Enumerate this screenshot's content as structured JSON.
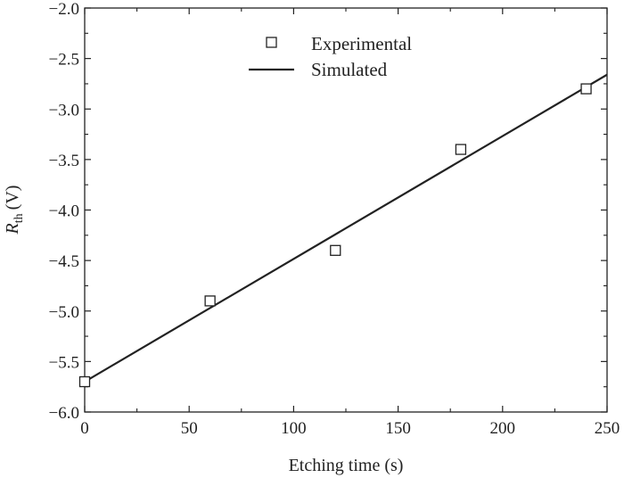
{
  "chart_data": {
    "type": "scatter",
    "title": "",
    "xlabel": "Etching time (s)",
    "ylabel": {
      "symbol": "R",
      "subscript": "th",
      "unit": "(V)"
    },
    "xlim": [
      0,
      250
    ],
    "ylim": [
      -6.0,
      -2.0
    ],
    "x_ticks": [
      0,
      50,
      100,
      150,
      200,
      250
    ],
    "y_ticks": [
      -6.0,
      -5.5,
      -5.0,
      -4.5,
      -4.0,
      -3.5,
      -3.0,
      -2.5,
      -2.0
    ],
    "x_tick_labels": [
      "0",
      "50",
      "100",
      "150",
      "200",
      "250"
    ],
    "y_tick_labels": [
      "−6.0",
      "−5.5",
      "−5.0",
      "−4.5",
      "−4.0",
      "−3.5",
      "−3.0",
      "−2.5",
      "−2.0"
    ],
    "grid": false,
    "legend_position": "top-center",
    "series": [
      {
        "name": "Experimental",
        "kind": "markers",
        "marker": "open-square",
        "points": [
          {
            "x": 0,
            "y": -5.7
          },
          {
            "x": 60,
            "y": -4.9
          },
          {
            "x": 120,
            "y": -4.4
          },
          {
            "x": 180,
            "y": -3.4
          },
          {
            "x": 240,
            "y": -2.8
          }
        ]
      },
      {
        "name": "Simulated",
        "kind": "line",
        "points": [
          {
            "x": 0,
            "y": -5.7
          },
          {
            "x": 250,
            "y": -2.66
          }
        ]
      }
    ],
    "colors": {
      "ink": "#222222",
      "background": "#ffffff"
    }
  }
}
